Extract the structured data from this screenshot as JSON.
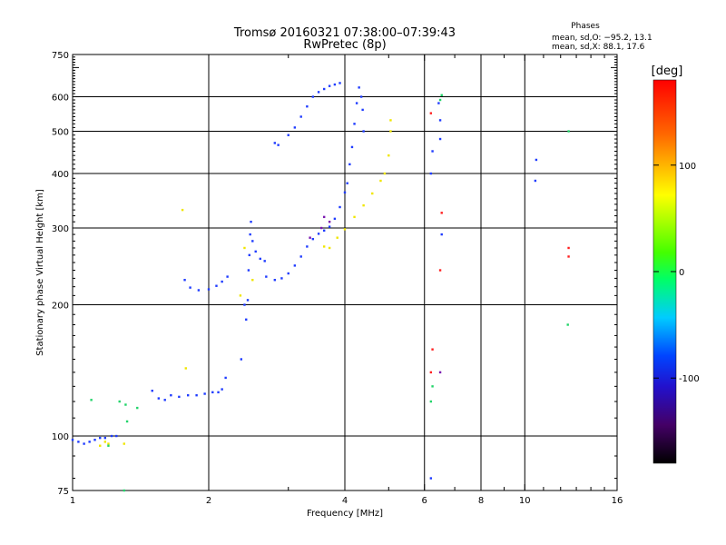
{
  "chart_data": {
    "type": "scatter",
    "title": "Tromsø 20160321 07:38:00–07:39:43",
    "subtitle": "RwPretec (8p)",
    "xlabel": "Frequency [MHz]",
    "ylabel": "Stationary phase Virtual Height [km]",
    "x_scale": "log",
    "y_scale": "log",
    "xlim": [
      1,
      16
    ],
    "ylim": [
      75,
      750
    ],
    "x_ticks": [
      1,
      2,
      4,
      6,
      8,
      10,
      16
    ],
    "y_ticks": [
      75,
      100,
      200,
      300,
      400,
      500,
      600,
      750
    ],
    "x_gridlines": [
      2,
      4,
      6,
      8,
      10
    ],
    "y_gridlines": [
      100,
      200,
      300,
      400,
      500,
      600
    ],
    "stats_header": "Phases",
    "stats_lines": [
      "mean, sd,O: −95.2, 13.1",
      "mean, sd,X: 88.1, 17.6"
    ],
    "colorbar": {
      "label": "[deg]",
      "range": [
        -180,
        180
      ],
      "ticks": [
        100,
        0,
        -100
      ]
    },
    "series": [
      {
        "values": [
          [
            1.0,
            98
          ],
          [
            1.03,
            97
          ],
          [
            1.06,
            96
          ],
          [
            1.09,
            97
          ],
          [
            1.12,
            98
          ],
          [
            1.15,
            99
          ],
          [
            1.18,
            99
          ],
          [
            1.22,
            100
          ],
          [
            1.25,
            100
          ],
          [
            1.5,
            127
          ],
          [
            1.55,
            122
          ],
          [
            1.6,
            121
          ],
          [
            1.65,
            124
          ],
          [
            1.72,
            123
          ],
          [
            1.8,
            124
          ],
          [
            1.88,
            124
          ],
          [
            1.96,
            125
          ],
          [
            2.04,
            126
          ],
          [
            2.1,
            126
          ],
          [
            2.14,
            128
          ],
          [
            2.18,
            136
          ],
          [
            2.36,
            150
          ],
          [
            2.4,
            200
          ],
          [
            2.42,
            185
          ],
          [
            2.44,
            205
          ],
          [
            2.45,
            240
          ],
          [
            2.46,
            260
          ],
          [
            2.47,
            290
          ],
          [
            2.48,
            310
          ],
          [
            2.5,
            280
          ],
          [
            2.54,
            265
          ],
          [
            2.6,
            255
          ],
          [
            2.66,
            252
          ],
          [
            1.77,
            228
          ],
          [
            1.82,
            219
          ],
          [
            1.9,
            216
          ],
          [
            2.0,
            217
          ],
          [
            2.08,
            221
          ],
          [
            2.14,
            226
          ],
          [
            2.2,
            232
          ],
          [
            2.68,
            232
          ],
          [
            2.8,
            228
          ],
          [
            2.9,
            230
          ],
          [
            3.0,
            236
          ],
          [
            3.1,
            246
          ],
          [
            3.2,
            258
          ],
          [
            3.3,
            272
          ],
          [
            3.4,
            283
          ],
          [
            3.5,
            291
          ],
          [
            3.6,
            296
          ],
          [
            3.7,
            302
          ],
          [
            3.8,
            315
          ],
          [
            3.9,
            335
          ],
          [
            4.0,
            362
          ],
          [
            4.05,
            380
          ],
          [
            4.1,
            420
          ],
          [
            4.15,
            460
          ],
          [
            4.2,
            520
          ],
          [
            4.25,
            580
          ],
          [
            4.3,
            630
          ],
          [
            4.35,
            600
          ],
          [
            4.38,
            560
          ],
          [
            4.4,
            500
          ],
          [
            2.8,
            470
          ],
          [
            2.85,
            465
          ],
          [
            3.0,
            490
          ],
          [
            3.1,
            510
          ],
          [
            3.2,
            540
          ],
          [
            3.3,
            570
          ],
          [
            3.4,
            600
          ],
          [
            3.5,
            615
          ],
          [
            3.6,
            625
          ],
          [
            3.7,
            635
          ],
          [
            3.8,
            640
          ],
          [
            3.9,
            645
          ],
          [
            6.2,
            400
          ],
          [
            6.25,
            450
          ],
          [
            6.5,
            480
          ],
          [
            6.5,
            530
          ],
          [
            6.45,
            580
          ],
          [
            6.55,
            290
          ],
          [
            6.2,
            80
          ],
          [
            10.6,
            430
          ],
          [
            10.55,
            385
          ]
        ]
      },
      {
        "values": [
          [
            1.15,
            95
          ],
          [
            1.2,
            96
          ],
          [
            1.18,
            97
          ],
          [
            1.3,
            96
          ],
          [
            3.6,
            272
          ],
          [
            3.7,
            270
          ],
          [
            3.85,
            285
          ],
          [
            4.0,
            298
          ],
          [
            4.2,
            318
          ],
          [
            4.4,
            338
          ],
          [
            4.6,
            360
          ],
          [
            4.8,
            385
          ],
          [
            4.9,
            400
          ],
          [
            5.0,
            440
          ],
          [
            5.05,
            500
          ],
          [
            5.05,
            530
          ],
          [
            2.4,
            270
          ],
          [
            2.5,
            228
          ],
          [
            2.35,
            210
          ],
          [
            1.75,
            330
          ],
          [
            1.78,
            143
          ]
        ]
      },
      {
        "values": [
          [
            1.32,
            108
          ],
          [
            1.39,
            116
          ],
          [
            1.1,
            121
          ],
          [
            1.27,
            120
          ],
          [
            1.31,
            118
          ],
          [
            1.2,
            95
          ],
          [
            6.5,
            590
          ],
          [
            6.55,
            605
          ],
          [
            12.5,
            500
          ],
          [
            12.45,
            180
          ],
          [
            6.25,
            130
          ],
          [
            6.2,
            120
          ],
          [
            1.3,
            75
          ]
        ]
      },
      {
        "values": [
          [
            6.2,
            550
          ],
          [
            6.55,
            325
          ],
          [
            6.5,
            240
          ],
          [
            6.25,
            158
          ],
          [
            6.2,
            140
          ],
          [
            12.5,
            270
          ],
          [
            12.5,
            258
          ]
        ]
      },
      {
        "values": [
          [
            3.6,
            318
          ],
          [
            3.55,
            300
          ],
          [
            3.7,
            310
          ],
          [
            3.35,
            285
          ],
          [
            6.5,
            140
          ]
        ]
      }
    ]
  }
}
